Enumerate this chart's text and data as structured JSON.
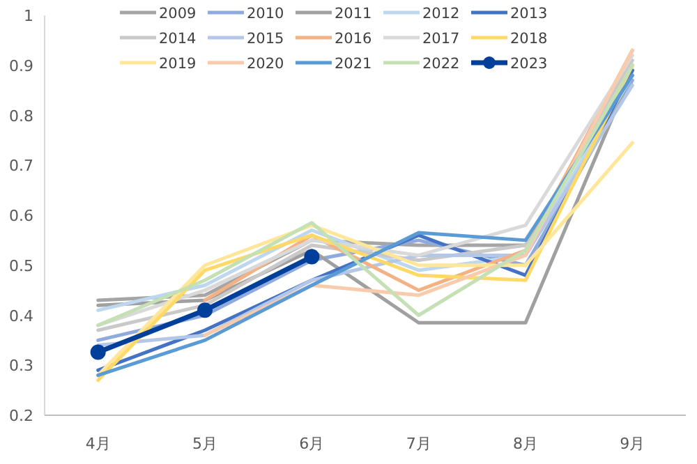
{
  "chart_data": {
    "type": "line",
    "categories": [
      "4月",
      "5月",
      "6月",
      "7月",
      "8月",
      "9月"
    ],
    "ylim": [
      0.2,
      1
    ],
    "yticks": [
      0.2,
      0.3,
      0.4,
      0.5,
      0.6,
      0.7,
      0.8,
      0.9,
      1
    ],
    "grid": false,
    "legend": "top",
    "marker": "none",
    "series": [
      {
        "name": "2009",
        "color": "#a5a5a5",
        "values": [
          0.43,
          0.44,
          0.55,
          0.54,
          0.54,
          0.9
        ]
      },
      {
        "name": "2010",
        "color": "#8faadc",
        "values": [
          0.35,
          0.4,
          0.51,
          0.55,
          0.5,
          0.87
        ]
      },
      {
        "name": "2011",
        "color": "#a0a0a0",
        "values": [
          0.42,
          0.43,
          0.53,
          0.385,
          0.385,
          0.89
        ]
      },
      {
        "name": "2012",
        "color": "#bdd7ee",
        "values": [
          0.41,
          0.46,
          0.57,
          0.49,
          0.52,
          0.88
        ]
      },
      {
        "name": "2013",
        "color": "#4472c4",
        "values": [
          0.29,
          0.37,
          0.47,
          0.56,
          0.48,
          0.89
        ]
      },
      {
        "name": "2014",
        "color": "#c9c9c9",
        "values": [
          0.37,
          0.42,
          0.54,
          0.51,
          0.54,
          0.91
        ]
      },
      {
        "name": "2015",
        "color": "#b4c7e7",
        "values": [
          0.34,
          0.36,
          0.47,
          0.52,
          0.52,
          0.86
        ]
      },
      {
        "name": "2016",
        "color": "#f4b183",
        "values": [
          null,
          0.43,
          0.56,
          0.45,
          0.53,
          0.93
        ]
      },
      {
        "name": "2017",
        "color": "#d9d9d9",
        "values": [
          0.38,
          0.45,
          0.55,
          0.52,
          0.58,
          0.92
        ]
      },
      {
        "name": "2018",
        "color": "#ffd966",
        "values": [
          0.27,
          0.49,
          0.56,
          0.48,
          0.47,
          0.9
        ]
      },
      {
        "name": "2019",
        "color": "#ffe699",
        "values": [
          0.28,
          0.5,
          0.58,
          0.5,
          0.5,
          0.745
        ]
      },
      {
        "name": "2020",
        "color": "#f8cbad",
        "values": [
          null,
          0.36,
          0.46,
          0.44,
          0.52,
          0.93
        ]
      },
      {
        "name": "2021",
        "color": "#5b9bd5",
        "values": [
          0.28,
          0.35,
          0.46,
          0.565,
          0.55,
          0.88
        ]
      },
      {
        "name": "2022",
        "color": "#c5e0b4",
        "values": [
          0.38,
          0.47,
          0.585,
          0.4,
          0.53,
          0.9
        ]
      },
      {
        "name": "2023",
        "color": "#003f9a",
        "marker": "circle",
        "values": [
          0.326,
          0.41,
          0.517,
          null,
          null,
          null
        ]
      }
    ]
  }
}
